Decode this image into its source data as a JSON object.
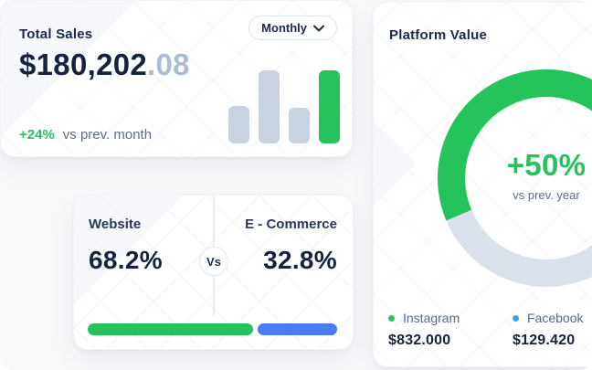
{
  "theme": {
    "green": "#24C35B",
    "blue": "#4A7CF2",
    "sky_blue": "#38A6EC",
    "navy": "#1C2B47",
    "navy_dark": "#16233E",
    "muted_text": "#5E6E88",
    "faded_digits": "#AABCD3",
    "bar_gray": "#C9D3DF",
    "donut_track_gray": "#DAE1EA"
  },
  "total_sales_card": {
    "title": "Total Sales",
    "period_selector": {
      "value": "Monthly"
    },
    "amount_main": "$180,202",
    "amount_decimals": ".08",
    "delta": "+24%",
    "delta_caption": "vs prev. month"
  },
  "comparison_card": {
    "left_label": "Website",
    "left_value": "68.2%",
    "vs_label": "Vs",
    "right_label": "E - Commerce",
    "right_value": "32.8%"
  },
  "platform_card": {
    "title": "Platform Value",
    "center_value": "+50%",
    "center_caption": "vs prev. year",
    "legend": [
      {
        "label": "Instagram",
        "value": "$832.000",
        "color": "#24C35B"
      },
      {
        "label": "Facebook",
        "value": "$129.420",
        "color": "#38A6EC"
      }
    ]
  },
  "chart_data": [
    {
      "type": "bar",
      "description": "Total Sales sparkline, four unlabeled bars",
      "values": [
        41,
        80,
        39,
        80
      ],
      "unit": "relative-height-px",
      "highlight_index": 3,
      "bar_color": "#C9D3DF",
      "highlight_color": "#24C35B"
    },
    {
      "type": "bar",
      "description": "Website vs E-Commerce horizontal split bar",
      "categories": [
        "Website",
        "E - Commerce"
      ],
      "values": [
        68.2,
        32.8
      ],
      "unit": "%",
      "colors": [
        "#24C35B",
        "#4A7CF2"
      ]
    },
    {
      "type": "pie",
      "subtype": "donut",
      "title": "Platform Value",
      "series": [
        {
          "name": "Instagram",
          "value": 832000,
          "display": "$832.000"
        },
        {
          "name": "Facebook",
          "value": 129420,
          "display": "$129.420"
        }
      ],
      "center_label": "+50%",
      "center_caption": "vs prev. year",
      "legend_position": "bottom",
      "visual": {
        "start_angle_deg": 247,
        "green_arc_fraction": 0.72,
        "arc_colors": [
          "#24C35B",
          "#DAE1EA"
        ]
      }
    }
  ]
}
